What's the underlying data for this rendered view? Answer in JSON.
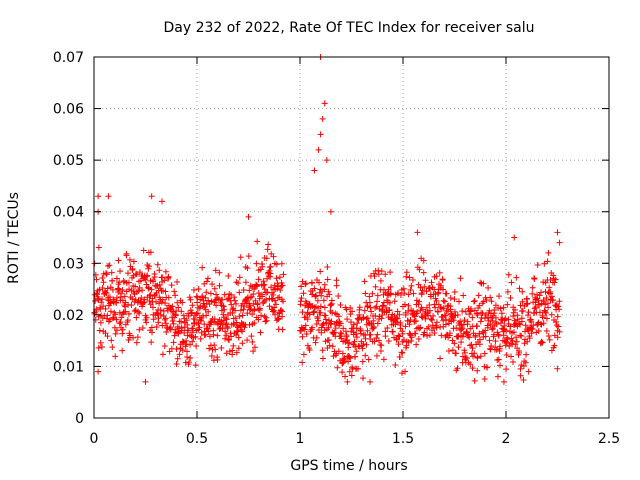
{
  "chart_data": {
    "type": "scatter",
    "title": "Day 232 of 2022, Rate Of TEC Index for receiver salu",
    "xlabel": "GPS time / hours",
    "ylabel": "ROTI / TECUs",
    "xlim": [
      0,
      2.5
    ],
    "ylim": [
      0,
      0.07
    ],
    "xticks": [
      0,
      0.5,
      1,
      1.5,
      2,
      2.5
    ],
    "xtick_labels": [
      "0",
      "0.5",
      "1",
      "1.5",
      "2",
      "2.5"
    ],
    "yticks": [
      0,
      0.01,
      0.02,
      0.03,
      0.04,
      0.05,
      0.06,
      0.07
    ],
    "ytick_labels": [
      "0",
      "0.01",
      "0.02",
      "0.03",
      "0.04",
      "0.05",
      "0.06",
      "0.07"
    ],
    "grid": true,
    "marker": "+",
    "color": "#ff0000",
    "series": [
      {
        "name": "ROTI",
        "segments": [
          {
            "x_range": [
              0.0,
              0.92
            ],
            "typical_range": [
              0.01,
              0.035
            ],
            "center": 0.021,
            "sample_count": 700
          },
          {
            "x_range": [
              1.0,
              2.26
            ],
            "typical_range": [
              0.007,
              0.033
            ],
            "center": 0.019,
            "sample_count": 900
          }
        ],
        "highlights": [
          {
            "x": 1.1,
            "y": 0.07
          },
          {
            "x": 1.12,
            "y": 0.061
          },
          {
            "x": 1.11,
            "y": 0.058
          },
          {
            "x": 1.1,
            "y": 0.055
          },
          {
            "x": 1.09,
            "y": 0.052
          },
          {
            "x": 1.13,
            "y": 0.05
          },
          {
            "x": 1.07,
            "y": 0.048
          },
          {
            "x": 1.15,
            "y": 0.04
          },
          {
            "x": 0.02,
            "y": 0.043
          },
          {
            "x": 0.07,
            "y": 0.043
          },
          {
            "x": 0.28,
            "y": 0.043
          },
          {
            "x": 0.33,
            "y": 0.042
          },
          {
            "x": 0.02,
            "y": 0.04
          },
          {
            "x": 0.75,
            "y": 0.039
          },
          {
            "x": 1.57,
            "y": 0.036
          },
          {
            "x": 2.04,
            "y": 0.035
          },
          {
            "x": 2.25,
            "y": 0.036
          },
          {
            "x": 2.26,
            "y": 0.034
          },
          {
            "x": 0.25,
            "y": 0.007
          },
          {
            "x": 1.23,
            "y": 0.007
          },
          {
            "x": 1.34,
            "y": 0.007
          },
          {
            "x": 1.99,
            "y": 0.007
          },
          {
            "x": 2.11,
            "y": 0.009
          },
          {
            "x": 0.02,
            "y": 0.009
          }
        ]
      }
    ]
  }
}
